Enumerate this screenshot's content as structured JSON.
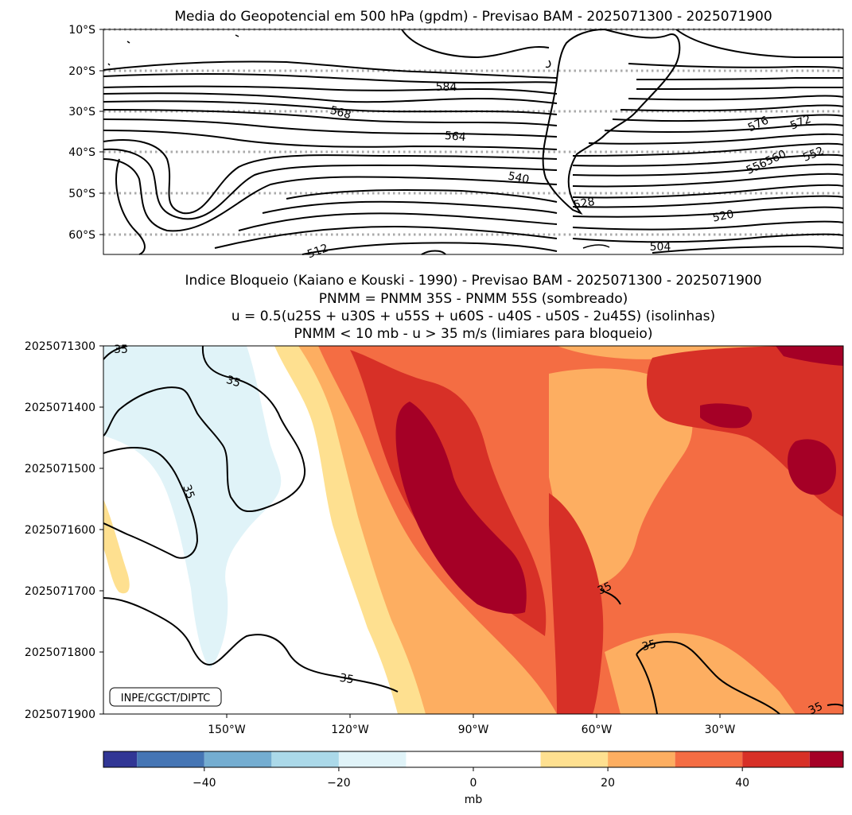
{
  "chart_data": [
    {
      "type": "contour-map",
      "title": "Media do Geopotencial em 500 hPa (gpdm) - Previsao BAM - 2025071300 - 2025071900",
      "y_ticks": [
        "10°S",
        "20°S",
        "30°S",
        "40°S",
        "50°S",
        "60°S"
      ],
      "lat_range": [
        -65,
        -10
      ],
      "contour_labels": [
        "584",
        "568",
        "564",
        "540",
        "528",
        "576",
        "572",
        "556560",
        "552",
        "520",
        "504",
        "512"
      ],
      "gridlines": "dotted latitudes"
    },
    {
      "type": "heatmap",
      "title_lines": [
        "Indice Bloqueio (Kaiano e Kouski - 1990) - Previsao BAM - 2025071300 - 2025071900",
        "PNMM = PNMM 35S - PNMM 55S (sombreado)",
        "u = 0.5(u25S + u30S + u55S + u60S - u40S - u50S - 2u45S) (isolinhas)",
        "PNMM < 10 mb - u > 35 m/s (limiares para bloqueio)"
      ],
      "y_ticks": [
        "2025071300",
        "2025071400",
        "2025071500",
        "2025071600",
        "2025071700",
        "2025071800",
        "2025071900"
      ],
      "x_ticks": [
        "150°W",
        "120°W",
        "90°W",
        "60°W",
        "30°W"
      ],
      "x_tick_lons": [
        -150,
        -120,
        -90,
        -60,
        -30
      ],
      "lon_range": [
        -180,
        0
      ],
      "contour_level_label": "35",
      "contour_labels": [
        "35",
        "35",
        "35",
        "35",
        "35",
        "35",
        "35"
      ],
      "badge": "INPE/CGCT/DIPTC"
    },
    {
      "type": "colorbar",
      "levels": [
        -55,
        -50,
        -40,
        -30,
        -20,
        -10,
        0,
        10,
        20,
        30,
        40,
        50,
        55
      ],
      "colors": [
        "#313695",
        "#4575b4",
        "#74add1",
        "#abd9e9",
        "#e0f3f8",
        "#ffffff",
        "#ffffff",
        "#fee090",
        "#fdae61",
        "#f46d43",
        "#d73027",
        "#a50026"
      ],
      "tick_values": [
        -40,
        -20,
        0,
        20,
        40
      ],
      "tick_labels": [
        "−40",
        "−20",
        "0",
        "20",
        "40"
      ],
      "label": "mb"
    }
  ]
}
